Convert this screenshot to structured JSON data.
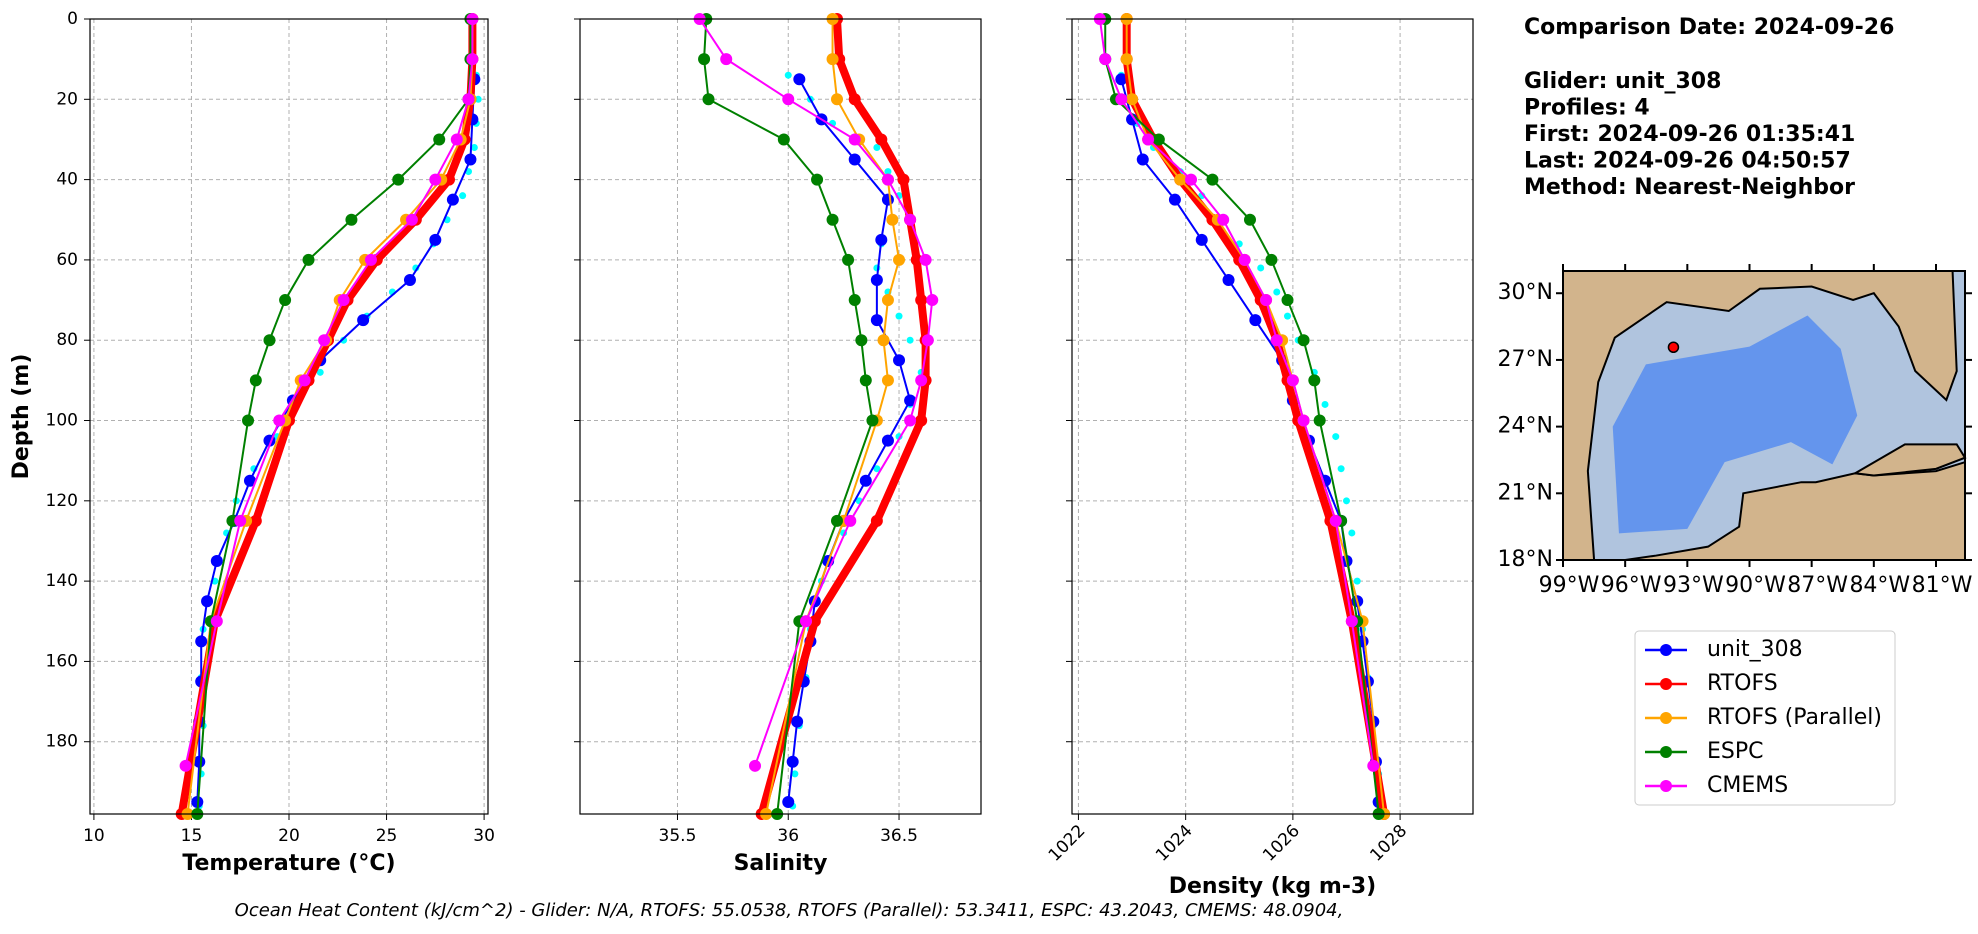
{
  "legend": {
    "entries": [
      {
        "name": "unit_308",
        "color": "#0000ff",
        "linewidth": 2
      },
      {
        "name": "RTOFS",
        "color": "#ff0000",
        "linewidth": 8
      },
      {
        "name": "RTOFS (Parallel)",
        "color": "#ffa500",
        "linewidth": 2
      },
      {
        "name": "ESPC",
        "color": "#008000",
        "linewidth": 2
      },
      {
        "name": "CMEMS",
        "color": "#ff00ff",
        "linewidth": 2
      }
    ]
  },
  "chart_data": [
    {
      "type": "line",
      "xlabel": "Temperature (°C)",
      "ylabel": "Depth (m)",
      "xlim": [
        9.8,
        30.2
      ],
      "xticks": [
        10,
        15,
        20,
        25,
        30
      ],
      "ylim": [
        0,
        198
      ],
      "y_inverted": true,
      "yticks": [
        0,
        20,
        40,
        60,
        80,
        100,
        120,
        140,
        160,
        180
      ],
      "grid": true,
      "raw": {
        "color": "#00ffff",
        "y": [
          14,
          20,
          26,
          32,
          38,
          44,
          50,
          56,
          62,
          68,
          74,
          80,
          88,
          96,
          104,
          112,
          120,
          128,
          140,
          152,
          164,
          176,
          188,
          196
        ],
        "x": [
          29.6,
          29.7,
          29.6,
          29.5,
          29.2,
          28.9,
          28.1,
          27.4,
          26.5,
          25.3,
          24,
          22.8,
          21.6,
          20.4,
          19.4,
          18.2,
          17.3,
          16.8,
          16.2,
          15.6,
          15.5,
          15.6,
          15.5,
          15.4
        ]
      },
      "series": [
        {
          "y": [
            15,
            25,
            35,
            45,
            55,
            65,
            75,
            85,
            95,
            105,
            115,
            125,
            135,
            145,
            155,
            165,
            175,
            185,
            195
          ],
          "x": [
            29.5,
            29.4,
            29.3,
            28.4,
            27.5,
            26.2,
            23.8,
            21.6,
            20.2,
            19,
            18,
            17.2,
            16.3,
            15.8,
            15.5,
            15.5,
            15.4,
            15.4,
            15.3
          ]
        },
        {
          "y": [
            0,
            10,
            20,
            30,
            40,
            50,
            60,
            70,
            80,
            90,
            100,
            125,
            150,
            198
          ],
          "x": [
            29.4,
            29.4,
            29.3,
            29,
            28.2,
            26.5,
            24.5,
            23,
            22,
            21,
            20,
            18.3,
            16.2,
            14.5
          ]
        },
        {
          "y": [
            0,
            10,
            20,
            30,
            40,
            50,
            60,
            70,
            80,
            90,
            100,
            125,
            150,
            198
          ],
          "x": [
            29.4,
            29.4,
            29.3,
            28.8,
            27.8,
            26,
            23.9,
            22.6,
            21.9,
            20.6,
            19.8,
            17.8,
            16,
            14.8
          ]
        },
        {
          "y": [
            0,
            10,
            20,
            30,
            40,
            50,
            60,
            70,
            80,
            90,
            100,
            125,
            150,
            198
          ],
          "x": [
            29.3,
            29.3,
            29.2,
            27.7,
            25.6,
            23.2,
            21,
            19.8,
            19,
            18.3,
            17.9,
            17.1,
            16,
            15.3
          ]
        },
        {
          "y": [
            0,
            10,
            20,
            30,
            40,
            50,
            60,
            70,
            80,
            90,
            100,
            125,
            150,
            186
          ],
          "x": [
            29.4,
            29.4,
            29.2,
            28.6,
            27.5,
            26.3,
            24.2,
            22.8,
            21.8,
            20.8,
            19.5,
            17.5,
            16.3,
            14.7
          ]
        }
      ]
    },
    {
      "type": "line",
      "xlabel": "Salinity",
      "xlim": [
        35.06,
        36.87
      ],
      "xticks": [
        35.5,
        36.0,
        {
          "value": 36.5,
          "label": "36.5"
        }
      ],
      "ylim": [
        0,
        198
      ],
      "y_inverted": true,
      "yticks": [
        0,
        20,
        40,
        60,
        80,
        100,
        120,
        140,
        160,
        180
      ],
      "grid": true,
      "raw": {
        "color": "#00ffff",
        "y": [
          14,
          20,
          26,
          32,
          38,
          44,
          50,
          56,
          62,
          68,
          74,
          80,
          88,
          96,
          104,
          112,
          120,
          128,
          140,
          152,
          164,
          176,
          188,
          196
        ],
        "x": [
          36.0,
          36.1,
          36.2,
          36.4,
          36.45,
          36.5,
          36.48,
          36.42,
          36.4,
          36.45,
          36.5,
          36.55,
          36.6,
          36.55,
          36.5,
          36.4,
          36.32,
          36.25,
          36.15,
          36.1,
          36.08,
          36.05,
          36.03,
          36.02
        ]
      },
      "series": [
        {
          "y": [
            15,
            25,
            35,
            45,
            55,
            65,
            75,
            85,
            95,
            105,
            115,
            125,
            135,
            145,
            155,
            165,
            175,
            185,
            195
          ],
          "x": [
            36.05,
            36.15,
            36.3,
            36.45,
            36.42,
            36.4,
            36.4,
            36.5,
            36.55,
            36.45,
            36.35,
            36.25,
            36.18,
            36.12,
            36.1,
            36.07,
            36.04,
            36.02,
            36
          ]
        },
        {
          "y": [
            0,
            10,
            20,
            30,
            40,
            50,
            60,
            70,
            80,
            90,
            100,
            125,
            150,
            198
          ],
          "x": [
            36.22,
            36.23,
            36.3,
            36.42,
            36.52,
            36.55,
            36.58,
            36.6,
            36.62,
            36.62,
            36.6,
            36.4,
            36.12,
            35.88
          ]
        },
        {
          "y": [
            0,
            10,
            20,
            30,
            40,
            50,
            60,
            70,
            80,
            90,
            100,
            125,
            150,
            198
          ],
          "x": [
            36.2,
            36.2,
            36.22,
            36.32,
            36.45,
            36.47,
            36.5,
            36.45,
            36.43,
            36.45,
            36.4,
            36.25,
            36.08,
            35.9
          ]
        },
        {
          "y": [
            0,
            10,
            20,
            30,
            40,
            50,
            60,
            70,
            80,
            90,
            100,
            125,
            150,
            198
          ],
          "x": [
            35.63,
            35.62,
            35.64,
            35.98,
            36.13,
            36.2,
            36.27,
            36.3,
            36.33,
            36.35,
            36.38,
            36.22,
            36.05,
            35.95
          ]
        },
        {
          "y": [
            0,
            10,
            20,
            30,
            40,
            50,
            60,
            70,
            80,
            90,
            100,
            125,
            150,
            186
          ],
          "x": [
            35.6,
            35.72,
            36,
            36.3,
            36.45,
            36.55,
            36.62,
            36.65,
            36.63,
            36.6,
            36.55,
            36.28,
            36.08,
            35.85
          ]
        }
      ]
    },
    {
      "type": "line",
      "xlabel": "Density (kg m-3)",
      "xlim": [
        1021.88,
        1029.36
      ],
      "xticks": [
        1022,
        1024,
        1026,
        1028
      ],
      "ylim": [
        0,
        198
      ],
      "y_inverted": true,
      "yticks": [
        0,
        20,
        40,
        60,
        80,
        100,
        120,
        140,
        160,
        180
      ],
      "grid": true,
      "raw": {
        "color": "#00ffff",
        "y": [
          14,
          20,
          26,
          32,
          38,
          44,
          50,
          56,
          62,
          68,
          74,
          80,
          88,
          96,
          104,
          112,
          120,
          128,
          140,
          152,
          164,
          176,
          188,
          196
        ],
        "x": [
          1022.8,
          1022.9,
          1023.1,
          1023.4,
          1023.9,
          1024.3,
          1024.7,
          1025,
          1025.4,
          1025.7,
          1025.9,
          1026.1,
          1026.4,
          1026.6,
          1026.8,
          1026.9,
          1027,
          1027.1,
          1027.2,
          1027.3,
          1027.4,
          1027.5,
          1027.6,
          1027.65
        ]
      },
      "series": [
        {
          "y": [
            15,
            25,
            35,
            45,
            55,
            65,
            75,
            85,
            95,
            105,
            115,
            125,
            135,
            145,
            155,
            165,
            175,
            185,
            195
          ],
          "x": [
            1022.8,
            1023,
            1023.2,
            1023.8,
            1024.3,
            1024.8,
            1025.3,
            1025.8,
            1026,
            1026.3,
            1026.6,
            1026.9,
            1027,
            1027.2,
            1027.3,
            1027.4,
            1027.5,
            1027.55,
            1027.6
          ]
        },
        {
          "y": [
            0,
            10,
            20,
            30,
            40,
            50,
            60,
            70,
            80,
            90,
            100,
            125,
            150,
            198
          ],
          "x": [
            1022.9,
            1022.9,
            1023,
            1023.4,
            1023.9,
            1024.5,
            1025,
            1025.4,
            1025.7,
            1025.9,
            1026.1,
            1026.7,
            1027.1,
            1027.7
          ]
        },
        {
          "y": [
            0,
            10,
            20,
            30,
            40,
            50,
            60,
            70,
            80,
            90,
            100,
            125,
            150,
            198
          ],
          "x": [
            1022.9,
            1022.9,
            1023,
            1023.3,
            1023.9,
            1024.6,
            1025.1,
            1025.5,
            1025.8,
            1026,
            1026.2,
            1026.8,
            1027.3,
            1027.7
          ]
        },
        {
          "y": [
            0,
            10,
            20,
            30,
            40,
            50,
            60,
            70,
            80,
            90,
            100,
            125,
            150,
            198
          ],
          "x": [
            1022.5,
            1022.5,
            1022.7,
            1023.5,
            1024.5,
            1025.2,
            1025.6,
            1025.9,
            1026.2,
            1026.4,
            1026.5,
            1026.9,
            1027.2,
            1027.6
          ]
        },
        {
          "y": [
            0,
            10,
            20,
            30,
            40,
            50,
            60,
            70,
            80,
            90,
            100,
            125,
            150,
            186
          ],
          "x": [
            1022.4,
            1022.5,
            1022.8,
            1023.3,
            1024.1,
            1024.7,
            1025.1,
            1025.5,
            1025.7,
            1026,
            1026.2,
            1026.8,
            1027.1,
            1027.5
          ]
        }
      ]
    }
  ],
  "info": {
    "title": "Comparison Date: 2024-09-26",
    "lines": [
      "Glider: unit_308",
      "Profiles: 4",
      "First: 2024-09-26 01:35:41",
      "Last: 2024-09-26 04:50:57",
      "Method: Nearest-Neighbor"
    ]
  },
  "map": {
    "xlim": [
      -99,
      -79.6
    ],
    "ylim": [
      18,
      31
    ],
    "xticks": [
      {
        "value": -99,
        "label": "99°W"
      },
      {
        "value": -96,
        "label": "96°W"
      },
      {
        "value": -93,
        "label": "93°W"
      },
      {
        "value": -90,
        "label": "90°W"
      },
      {
        "value": -87,
        "label": "87°W"
      },
      {
        "value": -84,
        "label": "84°W"
      },
      {
        "value": -81,
        "label": "81°W"
      }
    ],
    "yticks": [
      {
        "value": 18,
        "label": "18°N"
      },
      {
        "value": 21,
        "label": "21°N"
      },
      {
        "value": 24,
        "label": "24°N"
      },
      {
        "value": 27,
        "label": "27°N"
      },
      {
        "value": 30,
        "label": "30°N"
      }
    ],
    "glider_position": {
      "lon": -93.67,
      "lat": 27.57,
      "color": "#ff0000"
    }
  },
  "caption": "Ocean Heat Content (kJ/cm^2) - Glider: N/A,  RTOFS: 55.0538,  RTOFS (Parallel): 53.3411,  ESPC: 43.2043,  CMEMS: 48.0904,"
}
